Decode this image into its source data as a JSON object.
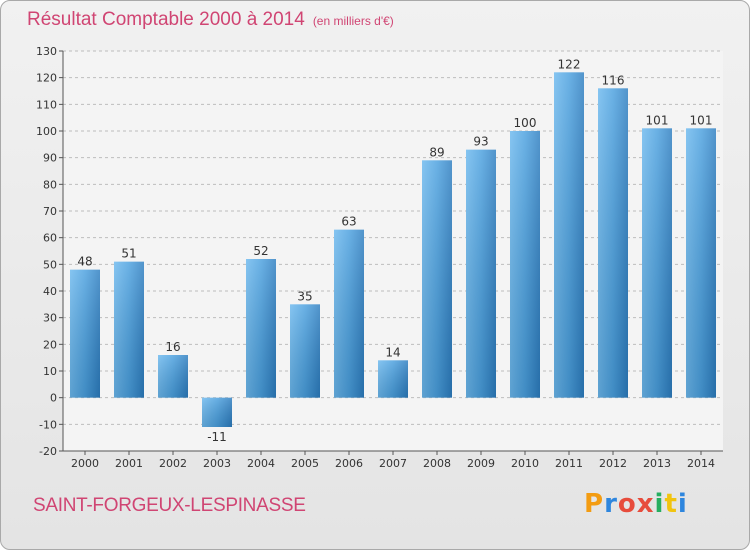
{
  "title": "Résultat Comptable 2000 à 2014",
  "subtitle": "(en milliers d'€)",
  "commune": "SAINT-FORGEUX-LESPINASSE",
  "logo": {
    "letters": [
      "P",
      "r",
      "o",
      "x",
      "i",
      "t",
      "i"
    ],
    "colors": [
      "#f39c12",
      "#2e86de",
      "#e74c3c",
      "#e74c3c",
      "#27ae60",
      "#f1c40f",
      "#2e86de"
    ]
  },
  "colors": {
    "accent": "#d04573",
    "bar_light": "#5dade8",
    "bar_dark": "#2a78b8",
    "grid": "#bdbdbd"
  },
  "chart_data": {
    "type": "bar",
    "title": "Résultat Comptable 2000 à 2014",
    "subtitle": "(en milliers d'€)",
    "categories": [
      "2000",
      "2001",
      "2002",
      "2003",
      "2004",
      "2005",
      "2006",
      "2007",
      "2008",
      "2009",
      "2010",
      "2011",
      "2012",
      "2013",
      "2014"
    ],
    "values": [
      48,
      51,
      16,
      -11,
      52,
      35,
      63,
      14,
      89,
      93,
      100,
      122,
      116,
      101,
      101
    ],
    "ylim": [
      -20,
      130
    ],
    "yticks": [
      -20,
      -10,
      0,
      10,
      20,
      30,
      40,
      50,
      60,
      70,
      80,
      90,
      100,
      110,
      120,
      130
    ],
    "grid": "horizontal dashed"
  }
}
